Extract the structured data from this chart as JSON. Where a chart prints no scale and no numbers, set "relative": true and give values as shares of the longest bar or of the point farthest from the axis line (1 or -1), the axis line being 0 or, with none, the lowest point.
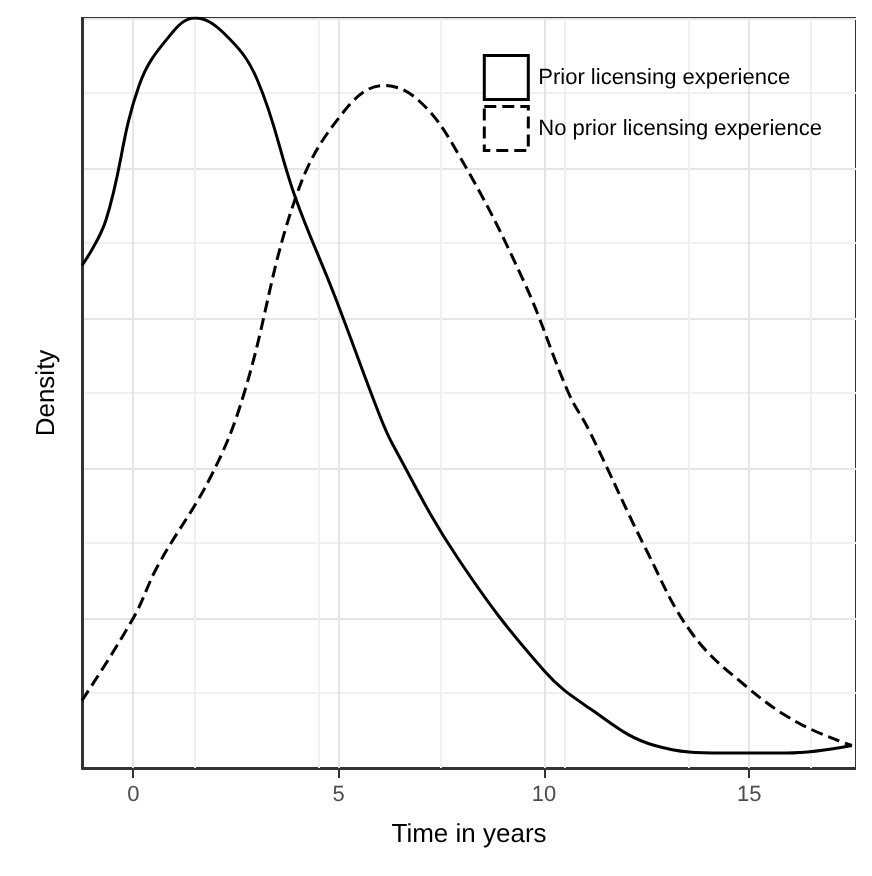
{
  "chart_data": {
    "type": "line",
    "xlabel": "Time in years",
    "ylabel": "Density",
    "relative": true,
    "xlim": [
      -1.25,
      17.6
    ],
    "xticks": [
      0,
      5,
      10,
      15
    ],
    "grid": true,
    "legend": "top right",
    "marker": "none",
    "series": [
      {
        "name": "Prior licensing experience",
        "color": "#000000",
        "line_style": "solid",
        "x": [
          -1.25,
          -0.67,
          0.14,
          0.94,
          1.5,
          2.2,
          3.0,
          3.95,
          4.9,
          6.0,
          6.33,
          7.9,
          10,
          11.1,
          12.7,
          14.4,
          15.9,
          17.5
        ],
        "values": [
          0.67,
          0.73,
          0.91,
          0.98,
          1.0,
          0.98,
          0.92,
          0.76,
          0.63,
          0.47,
          0.43,
          0.28,
          0.13,
          0.08,
          0.03,
          0.02,
          0.02,
          0.03
        ]
      },
      {
        "name": "No prior licensing experience",
        "color": "#000000",
        "line_style": "dashed",
        "x": [
          -1.25,
          0,
          0.6,
          1.9,
          2.7,
          3.95,
          5.05,
          6.1,
          6.95,
          7.9,
          9.5,
          10.6,
          11.1,
          12.5,
          13.6,
          14.9,
          16.2,
          17.5
        ],
        "values": [
          0.09,
          0.2,
          0.27,
          0.39,
          0.5,
          0.76,
          0.87,
          0.91,
          0.89,
          0.82,
          0.65,
          0.5,
          0.45,
          0.29,
          0.18,
          0.11,
          0.06,
          0.03
        ]
      }
    ]
  }
}
